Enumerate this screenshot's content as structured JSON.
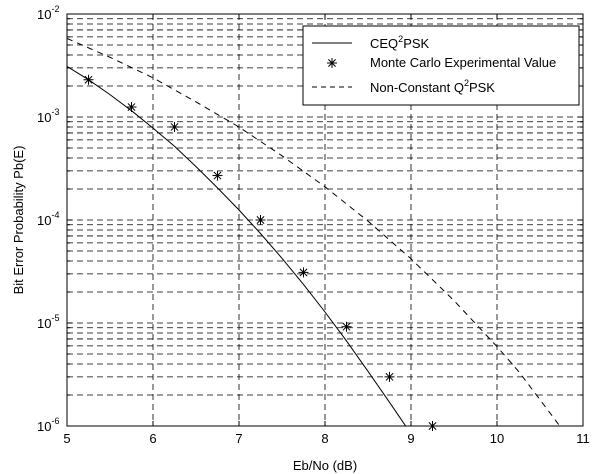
{
  "chart_data": {
    "type": "line",
    "xlabel": "Eb/No (dB)",
    "ylabel": "Bit Error Probability Pb(E)",
    "xlim": [
      5,
      11
    ],
    "ylim": [
      1e-06,
      0.01
    ],
    "yscale": "log",
    "grid": true,
    "legend_position": "top-right",
    "x_ticks": [
      "5",
      "6",
      "7",
      "8",
      "9",
      "10",
      "11"
    ],
    "y_ticks": [
      {
        "base": "10",
        "exp": "-6",
        "value": 1e-06
      },
      {
        "base": "10",
        "exp": "-5",
        "value": 1e-05
      },
      {
        "base": "10",
        "exp": "-4",
        "value": 0.0001
      },
      {
        "base": "10",
        "exp": "-3",
        "value": 0.001
      },
      {
        "base": "10",
        "exp": "-2",
        "value": 0.01
      }
    ],
    "series": [
      {
        "name_parts": [
          "CEQ",
          "2",
          "PSK"
        ],
        "style": "solid",
        "x": [
          5.0,
          5.25,
          5.5,
          5.75,
          6.0,
          6.25,
          6.5,
          6.75,
          7.0,
          7.25,
          7.5,
          7.75,
          8.0,
          8.25,
          8.5,
          8.75,
          9.0,
          9.25
        ],
        "y": [
          0.0031,
          0.0023,
          0.00165,
          0.00115,
          0.00078,
          0.00052,
          0.00033,
          0.000205,
          0.000125,
          7.4e-05,
          4.25e-05,
          2.37e-05,
          1.28e-05,
          6.7e-06,
          3.4e-06,
          1.7e-06,
          8.4e-07,
          4e-07
        ]
      },
      {
        "name": "Monte Carlo Experimental Value",
        "style": "marker",
        "marker": "*",
        "x": [
          5.25,
          5.75,
          6.25,
          6.75,
          7.25,
          7.75,
          8.25,
          8.75,
          9.25
        ],
        "y": [
          0.0023,
          0.00125,
          0.0008,
          0.00027,
          0.0001,
          3.1e-05,
          9.2e-06,
          3e-06,
          1e-06
        ]
      },
      {
        "name_parts": [
          "Non-Constant Q",
          "2",
          "PSK"
        ],
        "style": "dashed",
        "x": [
          5.0,
          5.5,
          6.0,
          6.5,
          7.0,
          7.5,
          8.0,
          8.5,
          9.0,
          9.5,
          10.0,
          10.25,
          10.5,
          10.75
        ],
        "y": [
          0.0058,
          0.0038,
          0.0024,
          0.0014,
          0.0008,
          0.00042,
          0.00021,
          9.75e-05,
          4.2e-05,
          1.65e-05,
          5.9e-06,
          3.4e-06,
          1.8e-06,
          9.5e-07
        ]
      }
    ]
  }
}
